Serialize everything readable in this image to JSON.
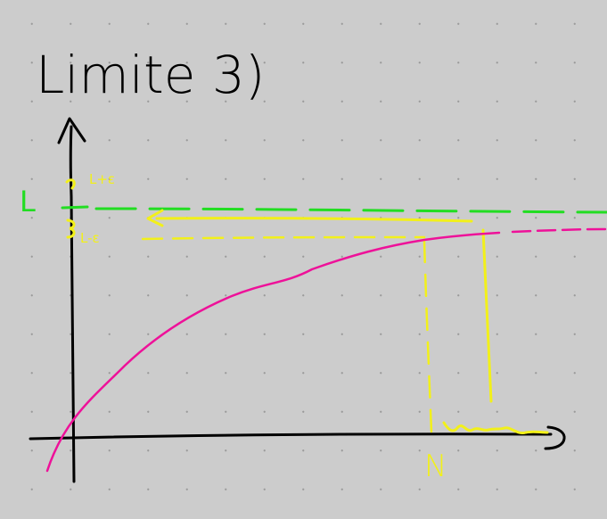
{
  "title": "Limite 3)",
  "labels": {
    "L": "L",
    "L_plus_eps": "L+ε",
    "L_minus_eps": "L-ε",
    "N": "N"
  },
  "colors": {
    "background": "#cccccc",
    "ink": "#000000",
    "limit_line": "#22dd22",
    "epsilon_band": "#f2f01a",
    "curve": "#ee1199"
  }
}
